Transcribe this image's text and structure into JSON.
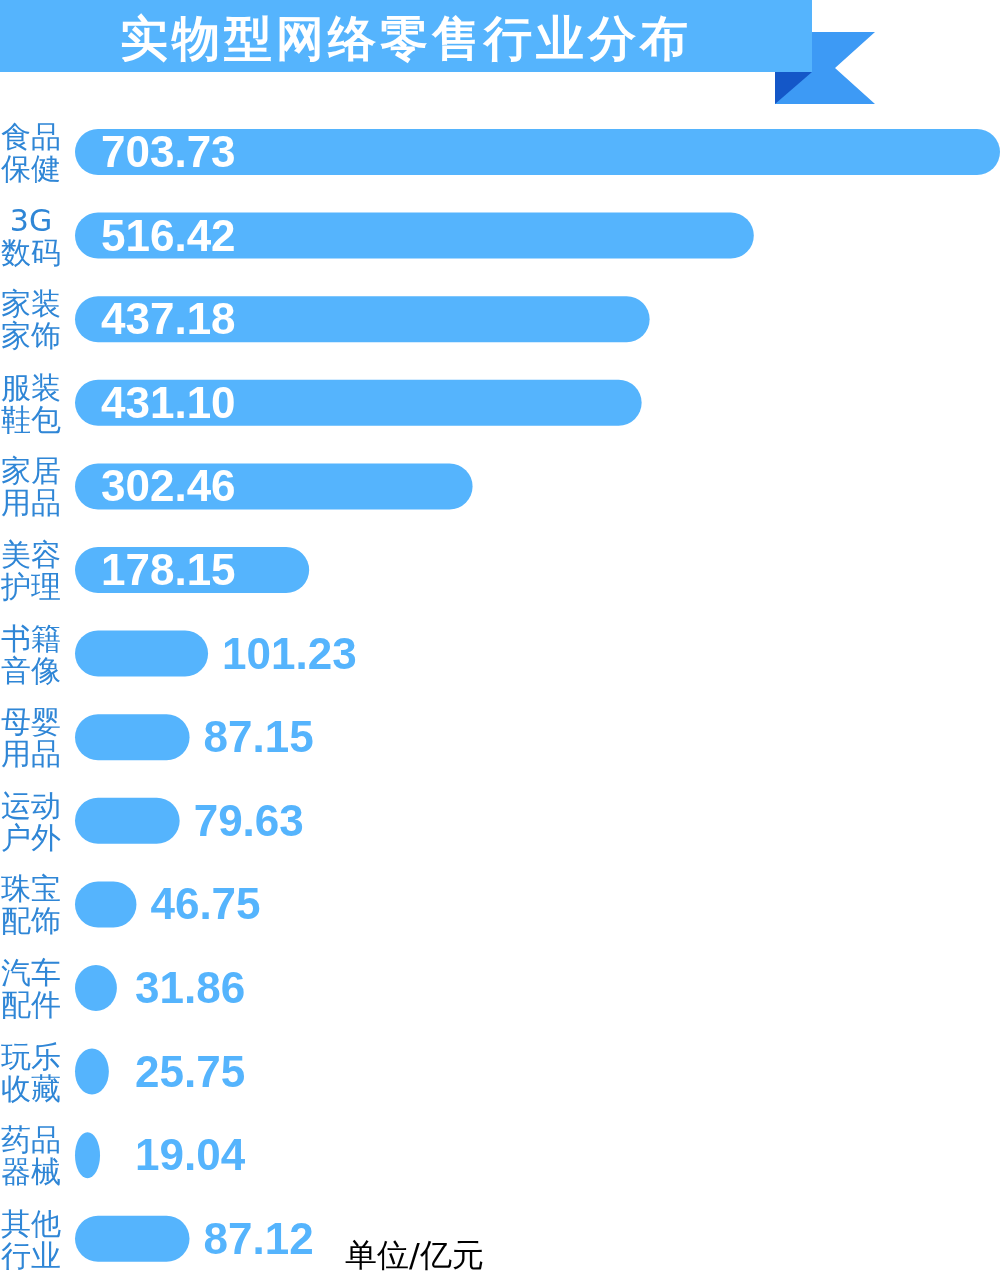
{
  "chart_data": {
    "type": "bar",
    "orientation": "horizontal",
    "title": "实物型网络零售行业分布",
    "categories": [
      "食品保健",
      "3G数码",
      "家装家饰",
      "服装鞋包",
      "家居用品",
      "美容护理",
      "书籍音像",
      "母婴用品",
      "运动户外",
      "珠宝配饰",
      "汽车配件",
      "玩乐收藏",
      "药品器械",
      "其他行业"
    ],
    "values": [
      703.73,
      516.42,
      437.18,
      431.1,
      302.46,
      178.15,
      101.23,
      87.15,
      79.63,
      46.75,
      31.86,
      25.75,
      19.04,
      87.12
    ],
    "value_labels": [
      "703.73",
      "516.42",
      "437.18",
      "431.10",
      "302.46",
      "178.15",
      "101.23",
      "87.15",
      "79.63",
      "46.75",
      "31.86",
      "25.75",
      "19.04",
      "87.12"
    ],
    "color": "#55b4fd",
    "annotations": [
      "单位/亿元"
    ]
  }
}
